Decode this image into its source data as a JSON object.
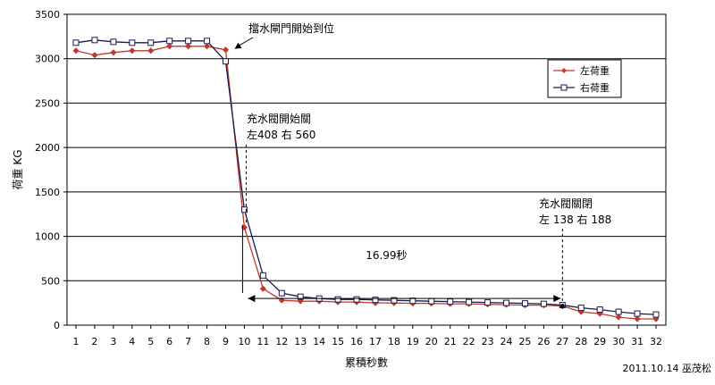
{
  "chart_data": {
    "type": "line",
    "title": "",
    "xlabel": "累積秒數",
    "ylabel": "荷重 KG",
    "xlim": [
      1,
      32
    ],
    "ylim": [
      0,
      3500
    ],
    "y_ticks": [
      0,
      500,
      1000,
      1500,
      2000,
      2500,
      3000,
      3500
    ],
    "x": [
      1,
      2,
      3,
      4,
      5,
      6,
      7,
      8,
      9,
      10,
      11,
      12,
      13,
      14,
      15,
      16,
      17,
      18,
      19,
      20,
      21,
      22,
      23,
      24,
      25,
      26,
      27,
      28,
      29,
      30,
      31,
      32
    ],
    "grid": "horizontal",
    "legend_position": "top-right",
    "series": [
      {
        "name": "左荷重",
        "color": "#c0392b",
        "marker": "diamond",
        "values": [
          3090,
          3040,
          3070,
          3090,
          3090,
          3140,
          3140,
          3140,
          3100,
          1100,
          410,
          280,
          270,
          270,
          260,
          260,
          250,
          250,
          245,
          245,
          240,
          240,
          235,
          230,
          225,
          225,
          215,
          150,
          130,
          90,
          70,
          70
        ]
      },
      {
        "name": "右荷重",
        "color": "#1a1a4d",
        "marker": "square",
        "values": [
          3180,
          3210,
          3190,
          3180,
          3180,
          3200,
          3200,
          3200,
          2970,
          1300,
          560,
          360,
          320,
          300,
          290,
          290,
          285,
          280,
          275,
          270,
          265,
          260,
          255,
          250,
          245,
          240,
          225,
          195,
          175,
          150,
          130,
          120
        ]
      }
    ],
    "annotations": [
      {
        "id": "gate",
        "text": "擋水閘門開始到位",
        "x": 9,
        "y": 3050
      },
      {
        "id": "valve-open",
        "text1": "充水閥開始關",
        "text2": "左408 右 560",
        "x": 10,
        "y": 1130
      },
      {
        "id": "valve-closed",
        "text1": "充水閥關閉",
        "text2": "左 138 右 188",
        "x": 27,
        "y": 215
      },
      {
        "id": "duration",
        "text": "16.99秒",
        "x_from": 10,
        "x_to": 27,
        "y": 300
      }
    ],
    "credit": "2011.10.14 巫茂松"
  }
}
